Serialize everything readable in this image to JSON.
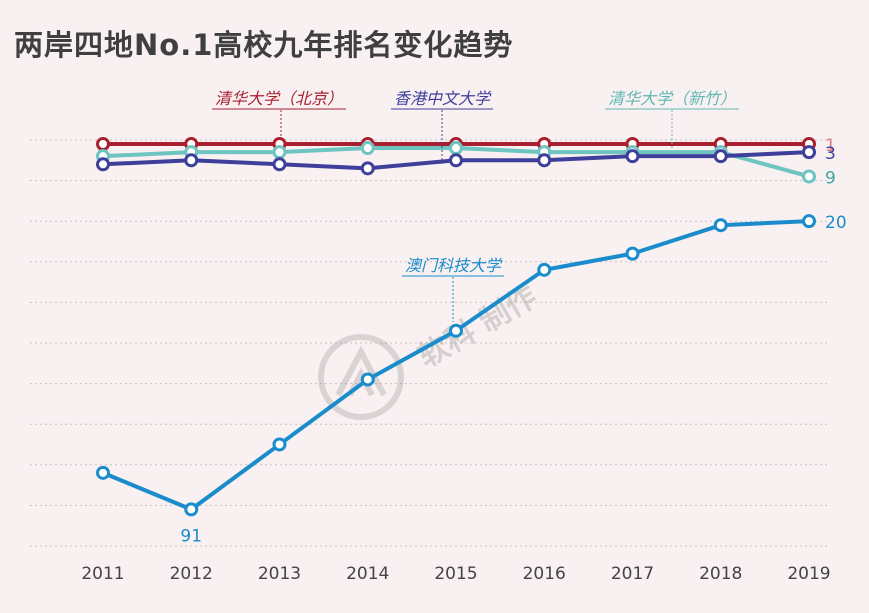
{
  "chart_data": {
    "type": "line",
    "title": "两岸四地No.1高校九年排名变化趋势",
    "x": [
      "2011",
      "2012",
      "2013",
      "2014",
      "2015",
      "2016",
      "2017",
      "2018",
      "2019"
    ],
    "y_inverted": true,
    "ylim": [
      1,
      101
    ],
    "grid": "horizontal-dotted",
    "series": [
      {
        "name": "清华大学（北京）",
        "color": "#a8202f",
        "values": [
          1,
          1,
          1,
          1,
          1,
          1,
          1,
          1,
          1
        ],
        "end_label": "1",
        "end_label_color": "#e17b87"
      },
      {
        "name": "香港中文大学",
        "color": "#3e3f9a",
        "values": [
          6,
          5,
          6,
          7,
          5,
          5,
          4,
          4,
          3
        ],
        "end_label": "3",
        "end_label_color": "#3e3f9a"
      },
      {
        "name": "清华大学（新竹）",
        "color": "#6dc4c0",
        "values": [
          4,
          3,
          3,
          2,
          2,
          3,
          3,
          3,
          9
        ],
        "end_label": "9",
        "end_label_color": "#3fa6a2"
      },
      {
        "name": "澳门科技大学",
        "color": "#1a8ccc",
        "values": [
          82,
          91,
          75,
          59,
          47,
          32,
          28,
          21,
          20
        ],
        "end_label": "20",
        "end_label_color": "#1a8ccc",
        "point_labels": [
          {
            "index": 1,
            "text": "91"
          }
        ]
      }
    ]
  },
  "watermark": {
    "text": "软科 制作"
  }
}
